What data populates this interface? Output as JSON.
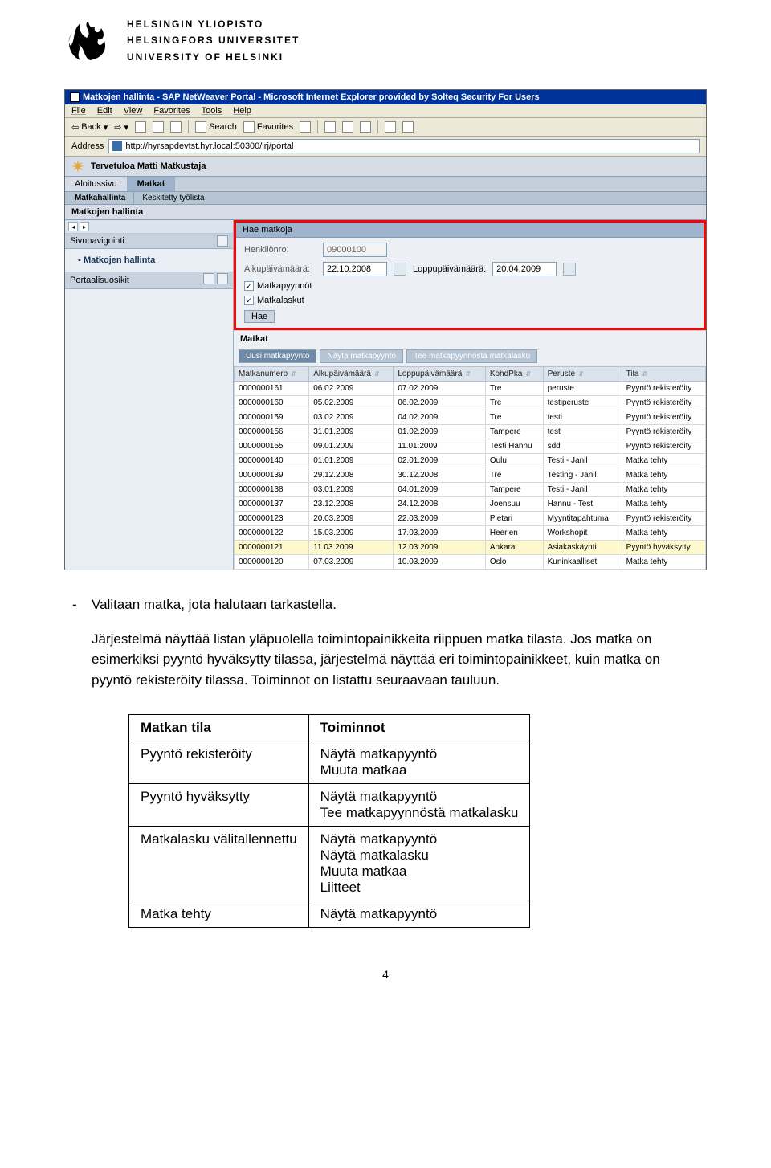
{
  "university": {
    "fi": "HELSINGIN YLIOPISTO",
    "sv": "HELSINGFORS UNIVERSITET",
    "en": "UNIVERSITY OF HELSINKI"
  },
  "browser": {
    "title": "Matkojen hallinta - SAP NetWeaver Portal - Microsoft Internet Explorer provided by Solteq Security For Users",
    "menus": [
      "File",
      "Edit",
      "View",
      "Favorites",
      "Tools",
      "Help"
    ],
    "toolbar": {
      "back": "Back",
      "search": "Search",
      "favorites": "Favorites"
    },
    "address_label": "Address",
    "address": "http://hyrsapdevtst.hyr.local:50300/irj/portal"
  },
  "portal": {
    "welcome": "Tervetuloa Matti Matkustaja",
    "tabs": [
      "Aloitussivu",
      "Matkat"
    ],
    "active_tab": 1,
    "subtabs": [
      "Matkahallinta",
      "Keskitetty työlista"
    ],
    "page_title": "Matkojen hallinta",
    "sidebar": {
      "nav_title": "Sivunavigointi",
      "items": [
        "Matkojen hallinta"
      ],
      "favorites_title": "Portaalisuosikit"
    },
    "search": {
      "panel_title": "Hae matkoja",
      "henkilonro_label": "Henkilönro:",
      "henkilonro_value": "09000100",
      "alkup_label": "Alkupäivämäärä:",
      "alkup_value": "22.10.2008",
      "loppup_label": "Loppupäivämäärä:",
      "loppup_value": "20.04.2009",
      "chk1": "Matkapyynnöt",
      "chk2": "Matkalaskut",
      "hae": "Hae"
    },
    "matkat": {
      "title": "Matkat",
      "actions": [
        "Uusi matkapyyntö",
        "Näytä matkapyyntö",
        "Tee matkapyynnöstä matkalasku"
      ],
      "columns": [
        "Matkanumero",
        "Alkupäivämäärä",
        "Loppupäivämäärä",
        "KohdPka",
        "Peruste",
        "Tila"
      ],
      "rows": [
        {
          "n": "0000000161",
          "a": "06.02.2009",
          "l": "07.02.2009",
          "k": "Tre",
          "p": "peruste",
          "t": "Pyyntö rekisteröity",
          "hl": false
        },
        {
          "n": "0000000160",
          "a": "05.02.2009",
          "l": "06.02.2009",
          "k": "Tre",
          "p": "testiperuste",
          "t": "Pyyntö rekisteröity",
          "hl": false
        },
        {
          "n": "0000000159",
          "a": "03.02.2009",
          "l": "04.02.2009",
          "k": "Tre",
          "p": "testi",
          "t": "Pyyntö rekisteröity",
          "hl": false
        },
        {
          "n": "0000000156",
          "a": "31.01.2009",
          "l": "01.02.2009",
          "k": "Tampere",
          "p": "test",
          "t": "Pyyntö rekisteröity",
          "hl": false
        },
        {
          "n": "0000000155",
          "a": "09.01.2009",
          "l": "11.01.2009",
          "k": "Testi Hannu",
          "p": "sdd",
          "t": "Pyyntö rekisteröity",
          "hl": false
        },
        {
          "n": "0000000140",
          "a": "01.01.2009",
          "l": "02.01.2009",
          "k": "Oulu",
          "p": "Testi - Janil",
          "t": "Matka tehty",
          "hl": false
        },
        {
          "n": "0000000139",
          "a": "29.12.2008",
          "l": "30.12.2008",
          "k": "Tre",
          "p": "Testing - Janil",
          "t": "Matka tehty",
          "hl": false
        },
        {
          "n": "0000000138",
          "a": "03.01.2009",
          "l": "04.01.2009",
          "k": "Tampere",
          "p": "Testi - Janil",
          "t": "Matka tehty",
          "hl": false
        },
        {
          "n": "0000000137",
          "a": "23.12.2008",
          "l": "24.12.2008",
          "k": "Joensuu",
          "p": "Hannu - Test",
          "t": "Matka tehty",
          "hl": false
        },
        {
          "n": "0000000123",
          "a": "20.03.2009",
          "l": "22.03.2009",
          "k": "Pietari",
          "p": "Myyntitapahtuma",
          "t": "Pyyntö rekisteröity",
          "hl": false
        },
        {
          "n": "0000000122",
          "a": "15.03.2009",
          "l": "17.03.2009",
          "k": "Heerlen",
          "p": "Workshopit",
          "t": "Matka tehty",
          "hl": false
        },
        {
          "n": "0000000121",
          "a": "11.03.2009",
          "l": "12.03.2009",
          "k": "Ankara",
          "p": "Asiakaskäynti",
          "t": "Pyyntö hyväksytty",
          "hl": true
        },
        {
          "n": "0000000120",
          "a": "07.03.2009",
          "l": "10.03.2009",
          "k": "Oslo",
          "p": "Kuninkaalliset",
          "t": "Matka tehty",
          "hl": false
        }
      ]
    }
  },
  "body": {
    "p1": "Valitaan matka, jota halutaan tarkastella.",
    "p2": "Järjestelmä näyttää listan yläpuolella toimintopainikkeita riippuen matka tilasta. Jos matka on esimerkiksi pyyntö hyväksytty tilassa, järjestelmä näyttää eri toimintopainikkeet, kuin matka on pyyntö rekisteröity tilassa. Toiminnot on listattu seuraavaan tauluun."
  },
  "summary": {
    "header": [
      "Matkan tila",
      "Toiminnot"
    ],
    "rows": [
      {
        "state": "Pyyntö rekisteröity",
        "actions": "Näytä matkapyyntö\nMuuta matkaa"
      },
      {
        "state": "Pyyntö hyväksytty",
        "actions": "Näytä matkapyyntö\nTee matkapyynnöstä matkalasku"
      },
      {
        "state": "Matkalasku välitallennettu",
        "actions": "Näytä matkapyyntö\nNäytä matkalasku\nMuuta matkaa\nLiitteet"
      },
      {
        "state": "Matka tehty",
        "actions": "Näytä matkapyyntö"
      }
    ]
  },
  "page_number": "4"
}
